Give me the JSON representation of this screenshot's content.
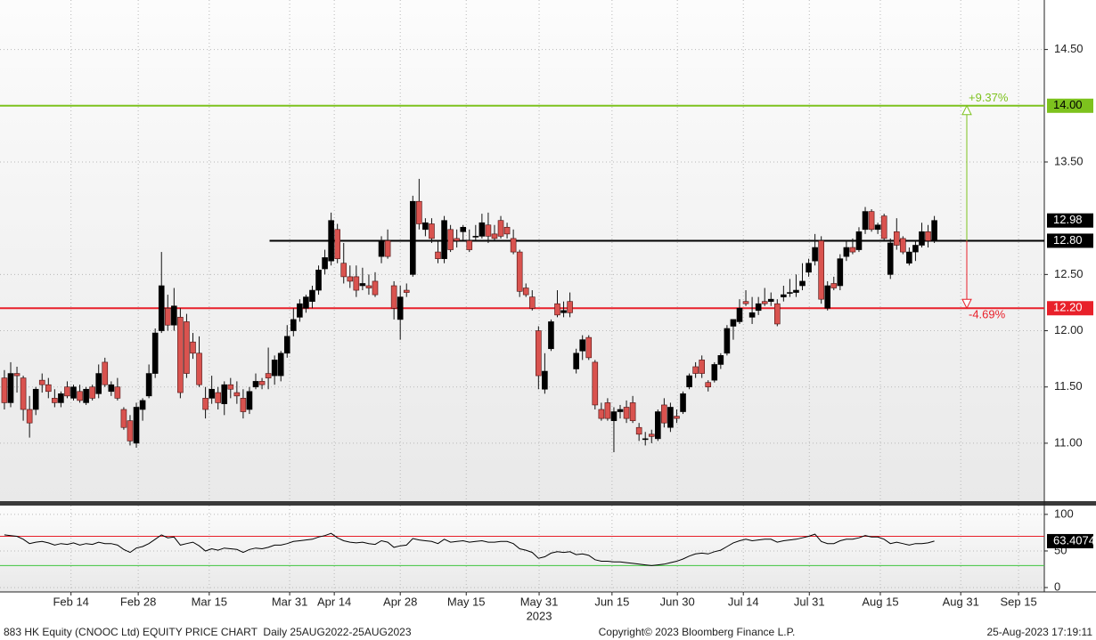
{
  "chart_data": [
    {
      "type": "candlestick",
      "open": [
        11.58,
        11.36,
        11.62,
        11.58,
        11.3,
        11.3,
        11.56,
        11.52,
        11.4,
        11.36,
        11.5,
        11.4,
        11.46,
        11.36,
        11.5,
        11.44,
        11.72,
        11.46,
        11.5,
        11.3,
        11.2,
        11.0,
        11.3,
        11.42,
        11.62,
        12.0,
        12.2,
        12.05,
        12.12,
        12.08,
        11.9,
        11.8,
        11.4,
        11.4,
        11.45,
        11.35,
        11.52,
        11.45,
        11.4,
        11.3,
        11.5,
        11.55,
        11.62,
        11.6,
        11.6,
        11.8,
        12.0,
        12.12,
        12.2,
        12.26,
        12.36,
        12.55,
        12.62,
        12.9,
        12.6,
        12.48,
        12.48,
        12.4,
        12.4,
        12.44,
        12.66,
        12.8,
        12.4,
        12.1,
        12.36,
        12.5,
        13.15,
        12.9,
        12.95,
        12.7,
        12.64,
        12.9,
        12.82,
        12.88,
        12.8,
        12.84,
        12.84,
        12.94,
        12.86,
        12.98,
        12.92,
        12.82,
        12.7,
        12.38,
        12.3,
        12.0,
        11.48,
        11.84,
        12.24,
        12.16,
        12.26,
        11.66,
        11.82,
        11.94,
        11.72,
        11.3,
        11.36,
        11.2,
        11.28,
        11.32,
        11.36,
        11.14,
        11.04,
        11.08,
        11.04,
        11.34,
        11.14,
        11.24,
        11.28,
        11.5,
        11.68,
        11.74,
        11.54,
        11.56,
        11.7,
        11.8,
        12.04,
        12.08,
        12.26,
        12.12,
        12.18,
        12.26,
        12.26,
        12.24,
        12.3,
        12.34,
        12.34,
        12.4,
        12.52,
        12.62,
        12.8,
        12.2,
        12.42,
        12.4,
        12.66,
        12.74,
        12.72,
        12.9,
        13.06,
        12.9,
        13.02,
        12.5,
        12.88,
        12.82,
        12.6,
        12.7,
        12.76,
        12.88,
        12.8
      ],
      "high": [
        11.65,
        11.72,
        11.68,
        11.6,
        11.42,
        11.5,
        11.62,
        11.58,
        11.48,
        11.46,
        11.55,
        11.52,
        11.52,
        11.5,
        11.52,
        11.7,
        11.76,
        11.55,
        11.58,
        11.32,
        11.25,
        11.36,
        11.4,
        11.7,
        12.02,
        12.7,
        12.32,
        12.38,
        12.2,
        12.15,
        11.98,
        11.95,
        11.5,
        11.6,
        11.5,
        11.55,
        11.58,
        11.55,
        11.48,
        11.5,
        11.62,
        11.58,
        11.85,
        11.78,
        11.82,
        12.05,
        12.2,
        12.28,
        12.32,
        12.4,
        12.58,
        12.72,
        13.05,
        12.95,
        12.78,
        12.58,
        12.58,
        12.56,
        12.5,
        12.52,
        12.84,
        12.9,
        12.44,
        12.4,
        12.42,
        13.2,
        13.35,
        13.0,
        13.0,
        12.8,
        13.02,
        12.94,
        12.9,
        12.94,
        12.9,
        12.94,
        13.04,
        13.05,
        12.94,
        13.02,
        12.96,
        12.9,
        12.72,
        12.42,
        12.36,
        12.04,
        11.8,
        12.1,
        12.36,
        12.26,
        12.34,
        11.84,
        11.96,
        11.96,
        11.74,
        11.36,
        11.4,
        11.32,
        11.34,
        11.38,
        11.42,
        11.18,
        11.1,
        11.12,
        11.3,
        11.4,
        11.36,
        11.3,
        11.46,
        11.62,
        11.72,
        11.78,
        11.56,
        11.72,
        11.8,
        12.05,
        12.1,
        12.28,
        12.36,
        12.3,
        12.3,
        12.38,
        12.34,
        12.28,
        12.4,
        12.46,
        12.5,
        12.6,
        12.64,
        12.86,
        12.84,
        12.44,
        12.48,
        12.68,
        12.8,
        12.82,
        12.92,
        13.1,
        13.08,
        12.96,
        13.04,
        12.82,
        13.0,
        12.84,
        12.74,
        12.8,
        12.96,
        12.94,
        13.02
      ],
      "low": [
        11.3,
        11.32,
        11.45,
        11.2,
        11.05,
        11.25,
        11.45,
        11.4,
        11.32,
        11.32,
        11.4,
        11.38,
        11.36,
        11.34,
        11.38,
        11.4,
        11.5,
        11.42,
        11.38,
        11.12,
        10.98,
        10.96,
        11.2,
        11.4,
        11.58,
        11.98,
        12.0,
        12.0,
        11.4,
        11.58,
        11.75,
        11.5,
        11.22,
        11.35,
        11.3,
        11.25,
        11.4,
        11.35,
        11.22,
        11.26,
        11.48,
        11.48,
        11.48,
        11.52,
        11.55,
        11.76,
        11.95,
        12.08,
        12.16,
        12.2,
        12.32,
        12.5,
        12.58,
        12.6,
        12.42,
        12.38,
        12.3,
        12.36,
        12.32,
        12.3,
        12.6,
        12.64,
        12.1,
        11.92,
        12.3,
        12.48,
        12.9,
        12.84,
        12.78,
        12.6,
        12.6,
        12.7,
        12.74,
        12.8,
        12.7,
        12.8,
        12.82,
        12.78,
        12.8,
        12.82,
        12.82,
        12.68,
        12.3,
        12.3,
        12.18,
        11.48,
        11.44,
        11.82,
        12.12,
        12.12,
        12.12,
        11.62,
        11.74,
        11.74,
        11.3,
        11.2,
        11.2,
        10.92,
        11.22,
        11.18,
        11.18,
        11.02,
        10.98,
        11.0,
        11.02,
        11.14,
        11.1,
        11.18,
        11.26,
        11.48,
        11.58,
        11.58,
        11.46,
        11.54,
        11.66,
        11.78,
        11.92,
        12.06,
        12.22,
        12.06,
        12.14,
        12.22,
        12.22,
        12.04,
        12.26,
        12.3,
        12.3,
        12.36,
        12.48,
        12.58,
        12.24,
        12.18,
        12.36,
        12.36,
        12.62,
        12.68,
        12.7,
        12.86,
        12.88,
        12.86,
        12.8,
        12.46,
        12.72,
        12.68,
        12.58,
        12.62,
        12.74,
        12.74,
        12.78
      ],
      "close": [
        11.36,
        11.62,
        11.6,
        11.3,
        11.18,
        11.48,
        11.52,
        11.46,
        11.36,
        11.44,
        11.42,
        11.5,
        11.38,
        11.48,
        11.4,
        11.62,
        11.52,
        11.52,
        11.4,
        11.14,
        11.02,
        11.32,
        11.38,
        11.62,
        11.98,
        12.4,
        12.05,
        12.22,
        11.45,
        11.62,
        11.8,
        11.52,
        11.3,
        11.48,
        11.36,
        11.52,
        11.48,
        11.42,
        11.28,
        11.46,
        11.55,
        11.52,
        11.58,
        11.74,
        11.8,
        11.95,
        12.1,
        12.24,
        12.3,
        12.36,
        12.54,
        12.65,
        12.98,
        12.64,
        12.48,
        12.44,
        12.36,
        12.42,
        12.38,
        12.32,
        12.8,
        12.66,
        12.2,
        12.3,
        12.34,
        13.15,
        12.95,
        12.96,
        12.82,
        12.64,
        12.98,
        12.72,
        12.8,
        12.92,
        12.72,
        12.84,
        12.96,
        12.84,
        12.82,
        12.84,
        12.86,
        12.7,
        12.35,
        12.32,
        12.2,
        11.6,
        11.64,
        12.08,
        12.14,
        12.18,
        12.16,
        11.8,
        11.92,
        11.76,
        11.34,
        11.22,
        11.22,
        11.28,
        11.3,
        11.22,
        11.2,
        11.08,
        11.04,
        11.06,
        11.28,
        11.18,
        11.32,
        11.22,
        11.44,
        11.6,
        11.62,
        11.62,
        11.5,
        11.7,
        11.78,
        12.02,
        12.1,
        12.2,
        12.24,
        12.16,
        12.24,
        12.24,
        12.28,
        12.06,
        12.32,
        12.34,
        12.36,
        12.44,
        12.6,
        12.74,
        12.28,
        12.4,
        12.38,
        12.64,
        12.74,
        12.7,
        12.88,
        13.06,
        12.9,
        12.94,
        12.82,
        12.78,
        12.76,
        12.7,
        12.7,
        12.76,
        12.88,
        12.8,
        12.98
      ],
      "ylim": [
        10.485,
        14.94
      ],
      "yticks": [
        {
          "value": 11,
          "label": "11.00"
        },
        {
          "value": 11.5,
          "label": "11.50"
        },
        {
          "value": 12,
          "label": "12.00"
        },
        {
          "value": 12.5,
          "label": "12.50"
        },
        {
          "value": 13.5,
          "label": "13.50"
        },
        {
          "value": 14.5,
          "label": "14.50"
        }
      ],
      "grid": true,
      "up_color": "#000000",
      "down_color": "#d9534f",
      "levels": [
        {
          "value": 14,
          "label": "14.00",
          "color": "#7dc21e"
        },
        {
          "value": 12.8,
          "label": "12.80",
          "color": "#000000",
          "from": 42.2
        },
        {
          "value": 12.2,
          "label": "12.20",
          "color": "#e8202a"
        }
      ],
      "annotations": [
        {
          "text": "+9.37%",
          "color": "#7dc21e"
        },
        {
          "text": "-4.69%",
          "color": "#e8202a"
        }
      ]
    },
    {
      "type": "line",
      "values": [
        72,
        71,
        70,
        66,
        60,
        62,
        63,
        61,
        58,
        60,
        59,
        61,
        58,
        60,
        59,
        62,
        60,
        60,
        58,
        52,
        48,
        54,
        56,
        60,
        66,
        72,
        68,
        69,
        58,
        60,
        62,
        57,
        50,
        53,
        51,
        54,
        53,
        52,
        48,
        52,
        54,
        53,
        55,
        58,
        58,
        60,
        63,
        64,
        65,
        66,
        69,
        71,
        74,
        68,
        64,
        62,
        61,
        62,
        60,
        59,
        64,
        62,
        55,
        57,
        58,
        67,
        65,
        64,
        63,
        60,
        66,
        62,
        63,
        64,
        62,
        63,
        64,
        62,
        62,
        63,
        63,
        60,
        53,
        51,
        48,
        40,
        42,
        47,
        49,
        48,
        49,
        45,
        46,
        44,
        38,
        36,
        36,
        35,
        35,
        34,
        33,
        32,
        31,
        30,
        31,
        32,
        34,
        36,
        39,
        43,
        46,
        47,
        46,
        49,
        51,
        56,
        61,
        64,
        66,
        64,
        65,
        66,
        66,
        62,
        64,
        65,
        66,
        68,
        70,
        73,
        63,
        60,
        60,
        64,
        66,
        66,
        68,
        71,
        69,
        69,
        66,
        60,
        62,
        60,
        58,
        60,
        60,
        61,
        63.4074
      ],
      "color": "#000000",
      "ylim": [
        -6,
        112
      ],
      "yticks": [
        100,
        50,
        0
      ],
      "grid": true,
      "levels": [
        {
          "value": 70,
          "color": "#e8202a"
        },
        {
          "value": 30,
          "color": "#3fc43f"
        }
      ],
      "xlim": [
        -0.7,
        165.5
      ],
      "xticks": [
        {
          "value": 10.6,
          "label": "Feb 14"
        },
        {
          "value": 21.3,
          "label": "Feb 28"
        },
        {
          "value": 32.6,
          "label": "Mar 15"
        },
        {
          "value": 45.4,
          "label": "Mar 31"
        },
        {
          "value": 52.5,
          "label": "Apr 14"
        },
        {
          "value": 63.0,
          "label": "Apr 28"
        },
        {
          "value": 73.5,
          "label": "May 15"
        },
        {
          "value": 85.1,
          "label": "May 31"
        },
        {
          "value": 96.7,
          "label": "Jun 15"
        },
        {
          "value": 107.1,
          "label": "Jun 30"
        },
        {
          "value": 117.6,
          "label": "Jul 14"
        },
        {
          "value": 128.1,
          "label": "Jul 31"
        },
        {
          "value": 139.4,
          "label": "Aug 15"
        },
        {
          "value": 152.2,
          "label": "Aug 31"
        },
        {
          "value": 161.4,
          "label": "Sep 15"
        }
      ],
      "xticks2": [
        {
          "value": 85.1,
          "label": "2023"
        }
      ]
    }
  ],
  "footer": {
    "left": "883 HK Equity (CNOOC Ltd) EQUITY PRICE CHART  Daily 25AUG2022-25AUG2023",
    "center": "Copyright© 2023 Bloomberg Finance L.P.",
    "right": "25-Aug-2023 17:19:11"
  }
}
